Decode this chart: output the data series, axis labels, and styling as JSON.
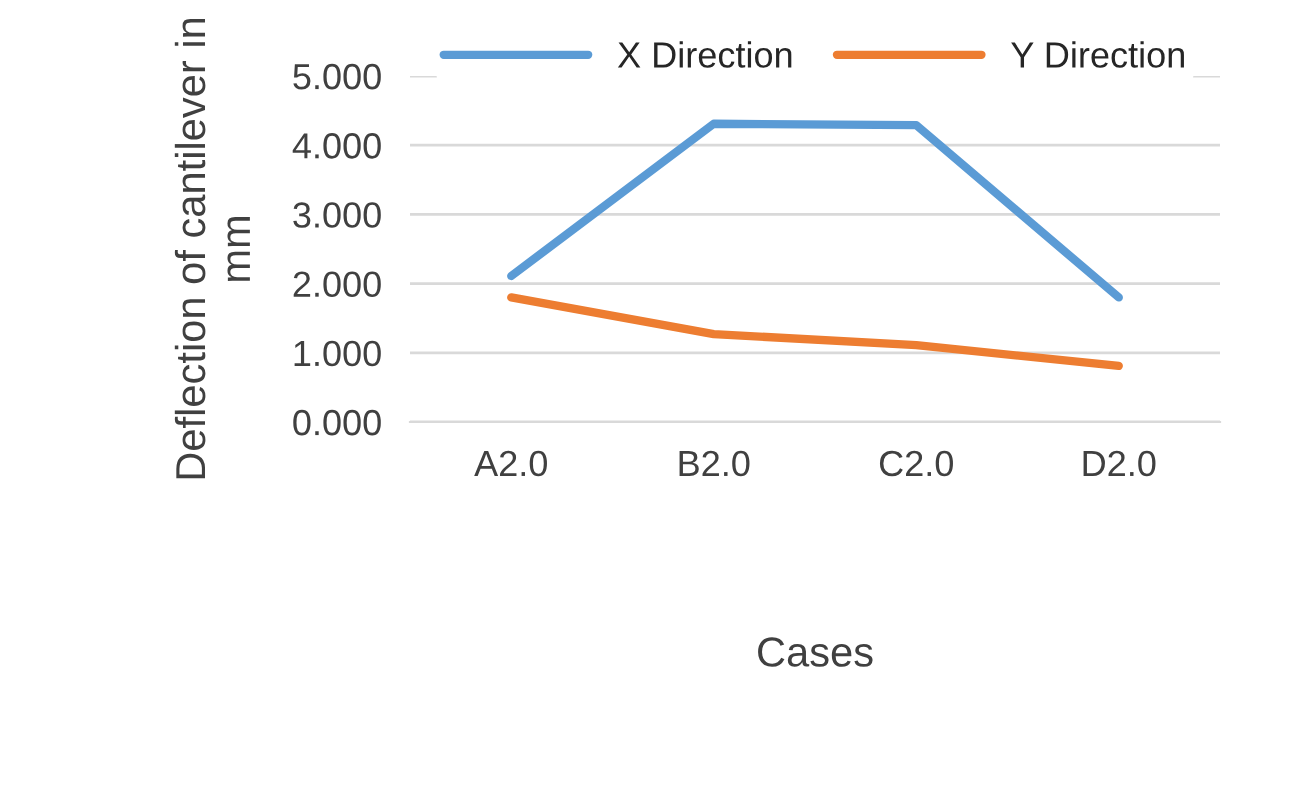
{
  "chart_data": {
    "type": "line",
    "xlabel": "Cases",
    "ylabel": "Deflection of cantilever in mm",
    "categories": [
      "A2.0",
      "B2.0",
      "C2.0",
      "D2.0"
    ],
    "series": [
      {
        "name": "X Direction",
        "color": "#5b9bd5",
        "values": [
          2.11,
          4.31,
          4.29,
          1.8
        ]
      },
      {
        "name": "Y Direction",
        "color": "#ed7d31",
        "values": [
          1.8,
          1.27,
          1.11,
          0.81
        ]
      }
    ],
    "ylim": [
      0,
      5
    ],
    "yticks": [
      {
        "value": 0,
        "label": "0.000"
      },
      {
        "value": 1,
        "label": "1.000"
      },
      {
        "value": 2,
        "label": "2.000"
      },
      {
        "value": 3,
        "label": "3.000"
      },
      {
        "value": 4,
        "label": "4.000"
      },
      {
        "value": 5,
        "label": "5.000"
      }
    ],
    "grid": "y",
    "legend": "top",
    "marker": "none",
    "line_style": "solid"
  }
}
